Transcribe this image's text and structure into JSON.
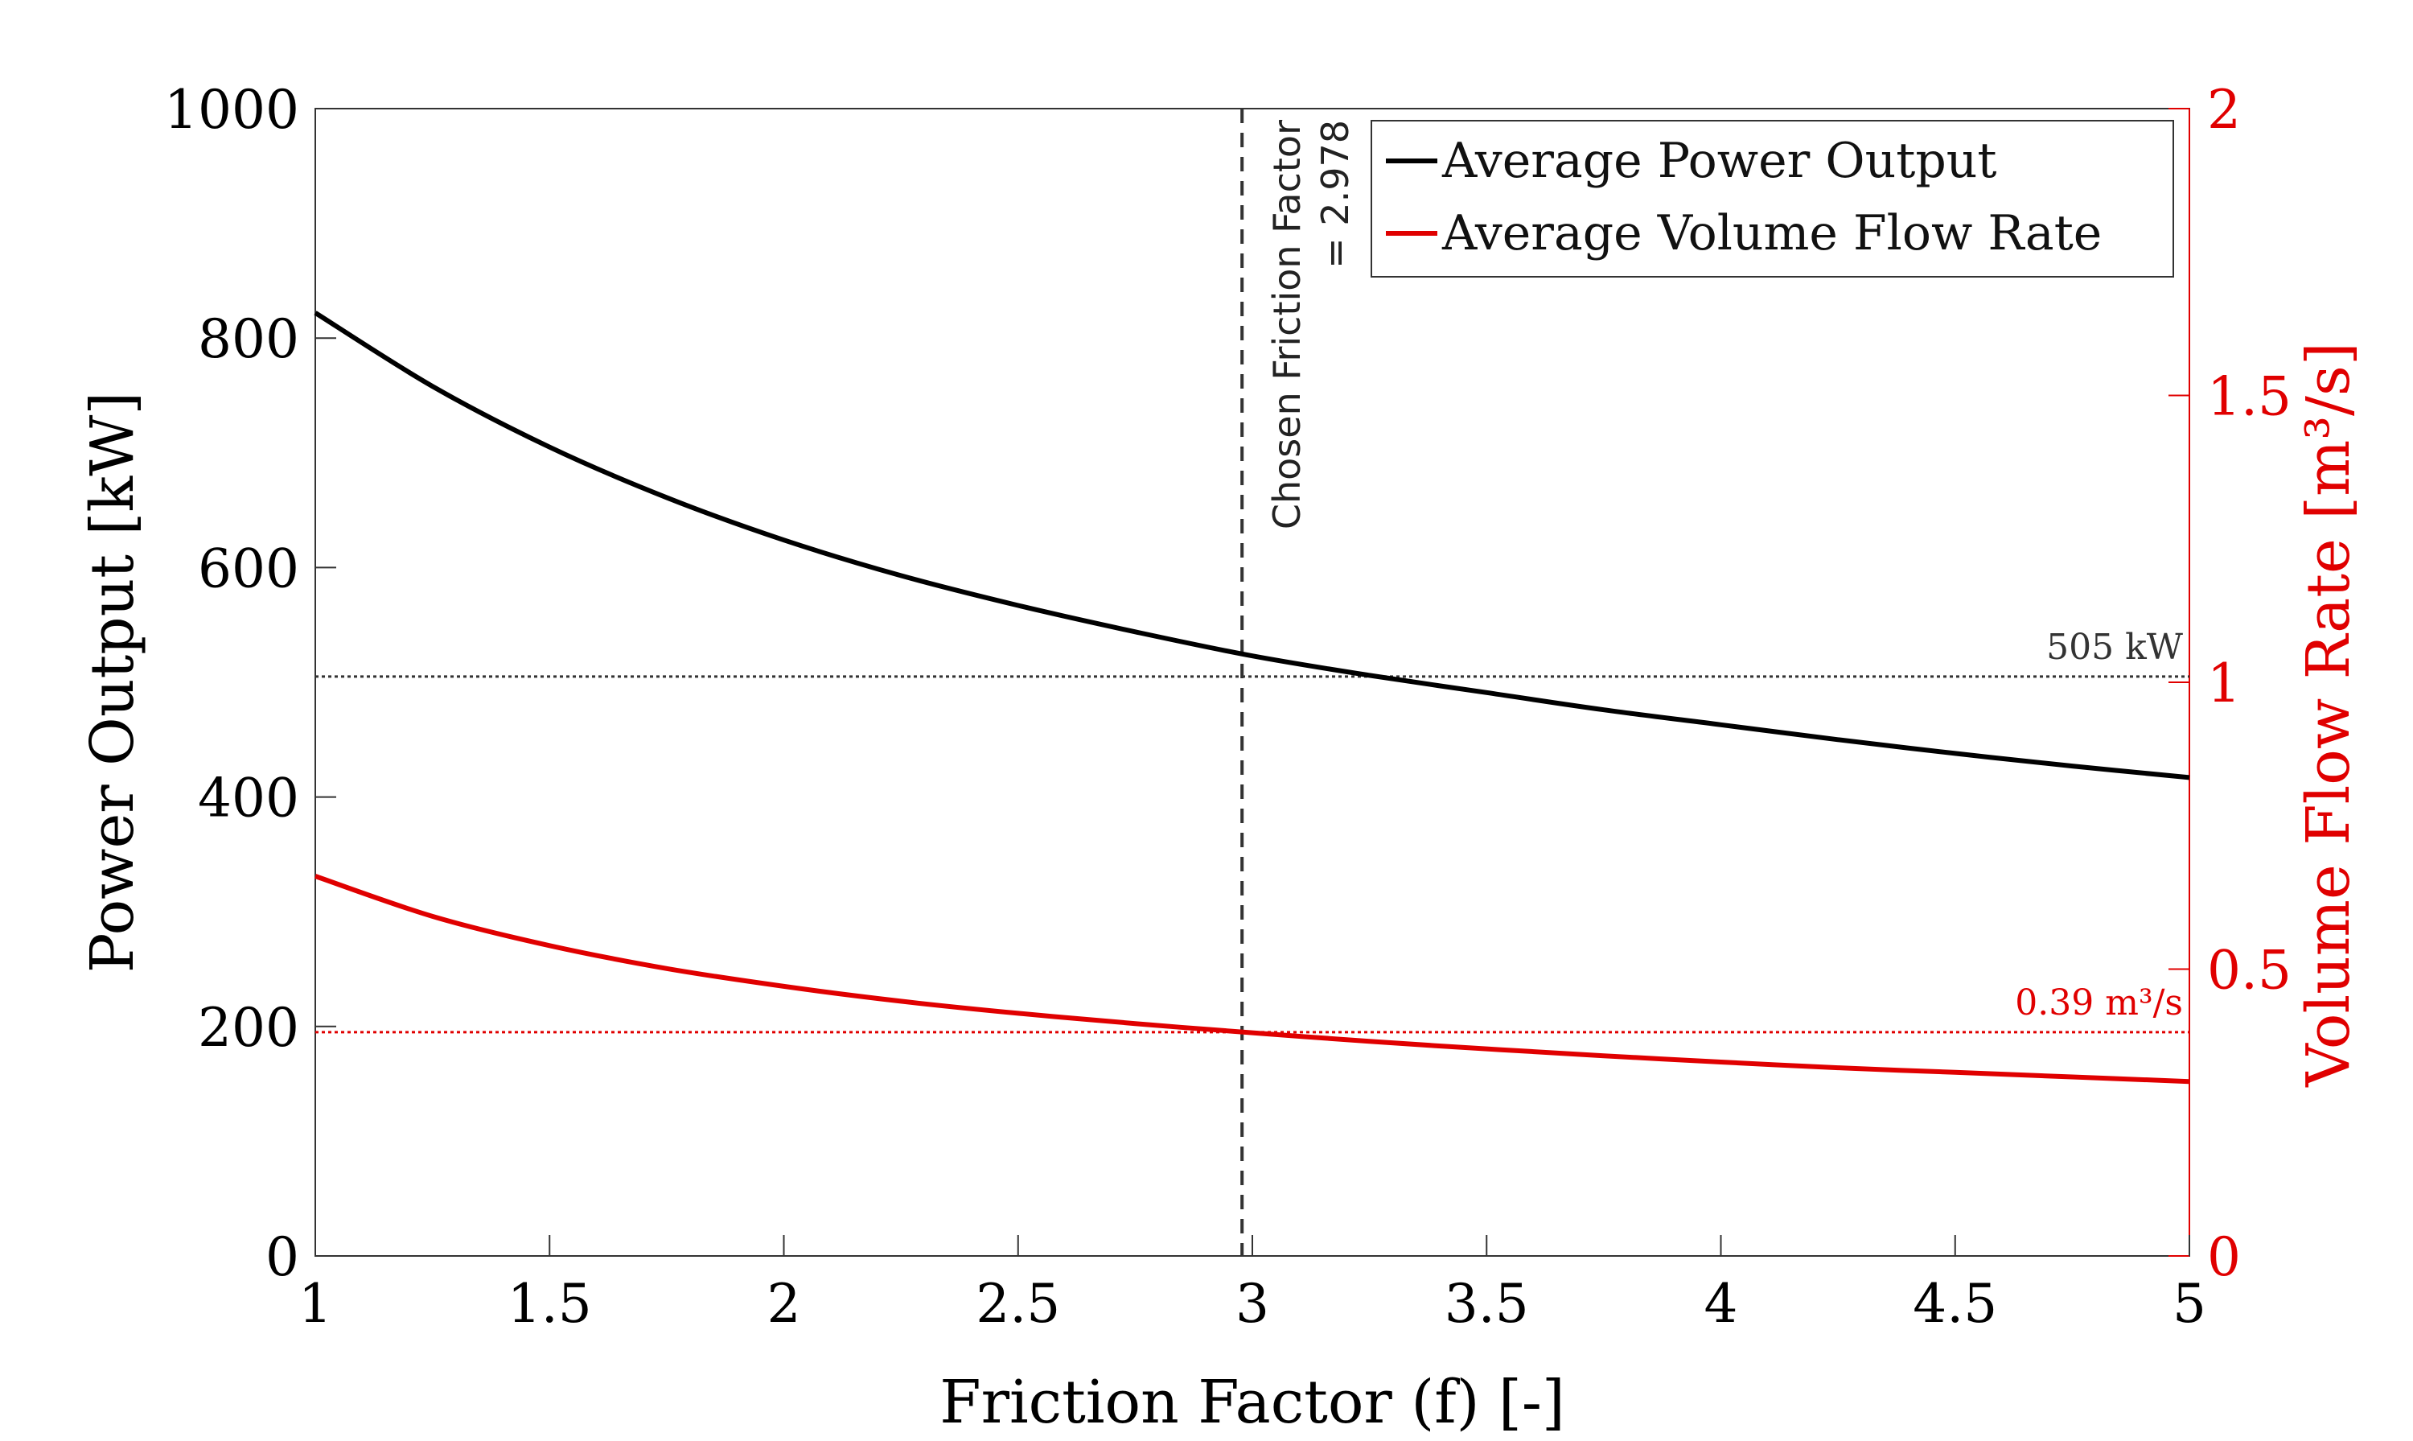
{
  "chart_data": {
    "type": "line",
    "xlabel": "Friction Factor (f) [-]",
    "ylabel_left": "Power Output [kW]",
    "ylabel_right": "Volume Flow Rate [m³/s]",
    "xlim": [
      1,
      5
    ],
    "ylim_left": [
      0,
      1000
    ],
    "ylim_right": [
      0,
      2
    ],
    "x_ticks": [
      "1",
      "1.5",
      "2",
      "2.5",
      "3",
      "3.5",
      "4",
      "4.5",
      "5"
    ],
    "y_ticks_left": [
      "0",
      "200",
      "400",
      "600",
      "800",
      "1000"
    ],
    "y_ticks_right": [
      "0",
      "0.5",
      "1",
      "1.5",
      "2"
    ],
    "grid": false,
    "legend_position": "top-right",
    "series": [
      {
        "name": "Average Power Output",
        "axis": "left",
        "color": "#000000",
        "x": [
          1,
          1.25,
          1.5,
          1.75,
          2,
          2.25,
          2.5,
          2.75,
          3,
          3.25,
          3.5,
          3.75,
          4,
          4.25,
          4.5,
          4.75,
          5
        ],
        "y": [
          822,
          758,
          705,
          661,
          624,
          593,
          567,
          544,
          523,
          506,
          491,
          476,
          463,
          450,
          438,
          427,
          417
        ]
      },
      {
        "name": "Average Volume Flow Rate",
        "axis": "right",
        "color": "#e00000",
        "x": [
          1,
          1.25,
          1.5,
          1.75,
          2,
          2.25,
          2.5,
          2.75,
          3,
          3.25,
          3.5,
          3.75,
          4,
          4.25,
          4.5,
          4.75,
          5
        ],
        "y": [
          0.662,
          0.592,
          0.541,
          0.501,
          0.47,
          0.444,
          0.423,
          0.405,
          0.389,
          0.374,
          0.361,
          0.349,
          0.338,
          0.328,
          0.32,
          0.312,
          0.304
        ]
      }
    ],
    "reference_lines": [
      {
        "orientation": "vertical",
        "x": 2.978,
        "label_line1": "Chosen Friction Factor",
        "label_line2": "= 2.978",
        "color": "#333333"
      },
      {
        "orientation": "horizontal",
        "axis": "left",
        "y": 505,
        "label": "505 kW",
        "color": "#333333"
      },
      {
        "orientation": "horizontal",
        "axis": "right",
        "y": 0.39,
        "label": "0.39 m³/s",
        "color": "#e00000"
      }
    ]
  }
}
